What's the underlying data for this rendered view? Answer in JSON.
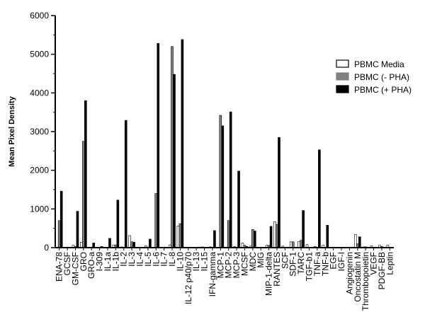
{
  "chart_data": {
    "type": "bar",
    "title": "",
    "xlabel": "",
    "ylabel": "Mean Pixel Density",
    "ylim": [
      0,
      6000
    ],
    "yticks": [
      0,
      1000,
      2000,
      3000,
      4000,
      5000,
      6000
    ],
    "grid": false,
    "legend_position": "top-right",
    "categories": [
      "ENA-78",
      "GCSF",
      "GM-CSF",
      "GRO",
      "GRO-a",
      "I-309",
      "IL-1a",
      "IL-1b",
      "IL-2",
      "IL-3",
      "IL-4",
      "IL-5",
      "IL-6",
      "IL-7",
      "IL-8",
      "IL-10",
      "IL-12 p40/p70",
      "IL-13",
      "IL-15",
      "IFN-gamma",
      "MCP-1",
      "MCP-2",
      "MCP-3",
      "MCSF",
      "MDC",
      "MIG",
      "MIP-1-delta",
      "RANTES",
      "SCF",
      "SDF-1",
      "TARC",
      "TGF-b1",
      "TNF-a",
      "TNF-b",
      "EGF",
      "IGF-I",
      "Angiogenin",
      "Oncostatin M",
      "Thrombopoietin",
      "VEGF",
      "PDGF-BB",
      "Leptin"
    ],
    "series": [
      {
        "name": "PBMC Media",
        "color": "#ffffff",
        "values": [
          0,
          0,
          60,
          140,
          0,
          0,
          0,
          70,
          20,
          310,
          0,
          50,
          0,
          0,
          70,
          560,
          0,
          0,
          20,
          20,
          0,
          0,
          30,
          120,
          40,
          0,
          60,
          670,
          40,
          150,
          160,
          80,
          30,
          60,
          10,
          10,
          0,
          340,
          20,
          50,
          60,
          60
        ]
      },
      {
        "name": "PBMC (- PHA)",
        "color": "#808080",
        "values": [
          700,
          0,
          30,
          2750,
          0,
          0,
          0,
          70,
          0,
          150,
          0,
          0,
          1400,
          0,
          5200,
          620,
          0,
          0,
          0,
          0,
          3420,
          700,
          0,
          60,
          470,
          0,
          60,
          600,
          10,
          150,
          190,
          0,
          0,
          0,
          0,
          0,
          0,
          100,
          20,
          0,
          30,
          0
        ]
      },
      {
        "name": "PBMC (+ PHA)",
        "color": "#000000",
        "values": [
          1460,
          0,
          940,
          3800,
          120,
          30,
          240,
          1230,
          3290,
          140,
          0,
          220,
          5280,
          0,
          4480,
          5380,
          0,
          0,
          0,
          440,
          3150,
          3510,
          1980,
          30,
          430,
          0,
          550,
          2850,
          0,
          0,
          960,
          0,
          2530,
          580,
          0,
          0,
          0,
          280,
          0,
          0,
          0,
          0
        ]
      }
    ]
  }
}
